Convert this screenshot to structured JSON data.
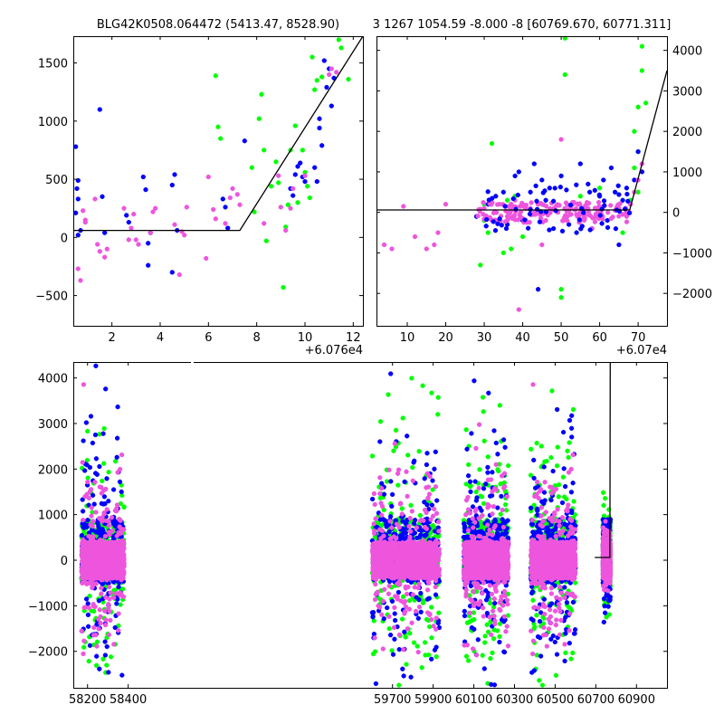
{
  "chart_data": [
    {
      "id": "top-left",
      "type": "scatter",
      "title": "BLG42K0508.064472 (5413.47, 8528.90)",
      "x_offset_label": "+6.076e4",
      "xlim": [
        0.4,
        12.4
      ],
      "ylim": [
        -760,
        1730
      ],
      "xticks": [
        2,
        4,
        6,
        8,
        10,
        12
      ],
      "xtick_labels": [
        "2",
        "4",
        "6",
        "8",
        "10",
        "12"
      ],
      "yticks": [
        -500,
        0,
        500,
        1000,
        1500
      ],
      "ytick_labels": [
        "−500",
        "0",
        "500",
        "1000",
        "1500"
      ],
      "y_axis_side": "left",
      "model_line": [
        [
          0.4,
          60
        ],
        [
          7.3,
          60
        ],
        [
          12.4,
          1730
        ]
      ],
      "series": [
        {
          "name": "green",
          "color": "#00ff00",
          "points": [
            [
              6.3,
              1390
            ],
            [
              6.4,
              950
            ],
            [
              6.5,
              850
            ],
            [
              7.8,
              600
            ],
            [
              7.9,
              220
            ],
            [
              8.1,
              1020
            ],
            [
              8.2,
              1230
            ],
            [
              8.3,
              750
            ],
            [
              8.4,
              -30
            ],
            [
              8.6,
              440
            ],
            [
              8.9,
              470
            ],
            [
              9.1,
              -430
            ],
            [
              9.2,
              90
            ],
            [
              9.3,
              280
            ],
            [
              9.4,
              750
            ],
            [
              9.6,
              960
            ],
            [
              9.9,
              750
            ],
            [
              10.0,
              560
            ],
            [
              10.1,
              440
            ],
            [
              10.2,
              340
            ],
            [
              10.3,
              1550
            ],
            [
              10.4,
              1270
            ],
            [
              10.5,
              1350
            ],
            [
              10.7,
              1380
            ],
            [
              11.0,
              1750
            ],
            [
              11.4,
              1700
            ],
            [
              11.5,
              1630
            ],
            [
              11.8,
              1360
            ],
            [
              8.8,
              650
            ],
            [
              9.7,
              300
            ]
          ]
        },
        {
          "name": "blue",
          "color": "#0000ff",
          "points": [
            [
              0.5,
              780
            ],
            [
              0.6,
              490
            ],
            [
              0.55,
              420
            ],
            [
              0.6,
              330
            ],
            [
              0.5,
              210
            ],
            [
              0.7,
              60
            ],
            [
              0.6,
              20
            ],
            [
              1.5,
              1100
            ],
            [
              1.6,
              350
            ],
            [
              1.7,
              40
            ],
            [
              2.6,
              190
            ],
            [
              2.7,
              130
            ],
            [
              3.3,
              520
            ],
            [
              3.4,
              410
            ],
            [
              3.6,
              40
            ],
            [
              3.5,
              -50
            ],
            [
              4.5,
              450
            ],
            [
              4.6,
              540
            ],
            [
              4.5,
              -300
            ],
            [
              4.7,
              60
            ],
            [
              3.5,
              -240
            ],
            [
              6.6,
              330
            ],
            [
              6.7,
              260
            ],
            [
              6.8,
              80
            ],
            [
              7.5,
              830
            ],
            [
              9.4,
              420
            ],
            [
              9.5,
              360
            ],
            [
              9.7,
              610
            ],
            [
              9.8,
              640
            ],
            [
              9.9,
              520
            ],
            [
              10.0,
              480
            ],
            [
              10.5,
              480
            ],
            [
              10.7,
              790
            ],
            [
              10.8,
              1520
            ],
            [
              11.0,
              1450
            ],
            [
              11.1,
              1130
            ],
            [
              11.2,
              1370
            ],
            [
              10.6,
              940
            ],
            [
              10.9,
              1290
            ],
            [
              9.6,
              540
            ],
            [
              10.4,
              600
            ],
            [
              10.6,
              1020
            ]
          ]
        },
        {
          "name": "magenta",
          "color": "#ee55dd",
          "points": [
            [
              0.6,
              -270
            ],
            [
              0.7,
              -370
            ],
            [
              0.8,
              230
            ],
            [
              0.9,
              150
            ],
            [
              0.9,
              130
            ],
            [
              1.3,
              330
            ],
            [
              1.4,
              -60
            ],
            [
              1.5,
              -120
            ],
            [
              1.7,
              -170
            ],
            [
              1.8,
              -100
            ],
            [
              2.5,
              250
            ],
            [
              2.7,
              -20
            ],
            [
              2.8,
              80
            ],
            [
              2.9,
              200
            ],
            [
              3.0,
              -20
            ],
            [
              3.1,
              -60
            ],
            [
              3.6,
              40
            ],
            [
              3.7,
              220
            ],
            [
              3.8,
              250
            ],
            [
              4.6,
              110
            ],
            [
              4.8,
              -320
            ],
            [
              4.9,
              50
            ],
            [
              5.0,
              20
            ],
            [
              5.1,
              260
            ],
            [
              6.0,
              520
            ],
            [
              6.2,
              240
            ],
            [
              6.3,
              160
            ],
            [
              6.9,
              340
            ],
            [
              7.0,
              420
            ],
            [
              7.2,
              370
            ],
            [
              7.3,
              280
            ],
            [
              8.9,
              530
            ],
            [
              9.0,
              260
            ],
            [
              9.2,
              60
            ],
            [
              9.4,
              250
            ],
            [
              9.5,
              420
            ],
            [
              10.0,
              530
            ],
            [
              11.0,
              1400
            ],
            [
              11.1,
              1450
            ],
            [
              11.3,
              1420
            ],
            [
              5.9,
              -180
            ],
            [
              6.7,
              120
            ],
            [
              8.3,
              120
            ]
          ]
        }
      ]
    },
    {
      "id": "top-right",
      "type": "scatter",
      "title": "3 1267 1054.59 -8.000 -8 [60769.670, 60771.311]",
      "x_offset_label": "+6.07e4",
      "xlim": [
        2,
        77.5
      ],
      "ylim": [
        -2800,
        4350
      ],
      "xticks": [
        10,
        20,
        30,
        40,
        50,
        60,
        70
      ],
      "xtick_labels": [
        "10",
        "20",
        "30",
        "40",
        "50",
        "60",
        "70"
      ],
      "yticks": [
        -2000,
        -1000,
        0,
        1000,
        2000,
        3000,
        4000
      ],
      "ytick_labels": [
        "−2000",
        "−1000",
        "0",
        "1000",
        "2000",
        "3000",
        "4000"
      ],
      "y_axis_side": "right",
      "model_line": [
        [
          2,
          60
        ],
        [
          67.8,
          60
        ],
        [
          77.5,
          3500
        ]
      ],
      "series": [
        {
          "name": "green",
          "color": "#00ff00",
          "points": [
            [
              29,
              -1300
            ],
            [
              30,
              200
            ],
            [
              31,
              -500
            ],
            [
              32,
              1700
            ],
            [
              34,
              -200
            ],
            [
              36,
              300
            ],
            [
              37,
              -900
            ],
            [
              38,
              400
            ],
            [
              45,
              200
            ],
            [
              50,
              -1900
            ],
            [
              50,
              -2100
            ],
            [
              51,
              4300
            ],
            [
              51,
              3400
            ],
            [
              55,
              400
            ],
            [
              60,
              600
            ],
            [
              65,
              200
            ],
            [
              66,
              -500
            ],
            [
              68,
              300
            ],
            [
              69,
              1100
            ],
            [
              70,
              2600
            ],
            [
              70,
              1500
            ],
            [
              71,
              3500
            ],
            [
              71,
              4100
            ],
            [
              72,
              2700
            ],
            [
              69,
              2000
            ],
            [
              70,
              500
            ],
            [
              40,
              -600
            ],
            [
              35,
              -1000
            ],
            [
              30,
              -200
            ]
          ]
        },
        {
          "name": "blue",
          "color": "#0000ff",
          "points": [
            [
              28,
              -100
            ],
            [
              31,
              200
            ],
            [
              33,
              400
            ],
            [
              36,
              -300
            ],
            [
              38,
              900
            ],
            [
              39,
              1000
            ],
            [
              40,
              -200
            ],
            [
              42,
              500
            ],
            [
              44,
              -1900
            ],
            [
              45,
              800
            ],
            [
              47,
              600
            ],
            [
              50,
              900
            ],
            [
              52,
              -300
            ],
            [
              53,
              200
            ],
            [
              55,
              1200
            ],
            [
              57,
              700
            ],
            [
              58,
              -400
            ],
            [
              60,
              400
            ],
            [
              63,
              1100
            ],
            [
              65,
              -800
            ],
            [
              66,
              300
            ],
            [
              67,
              600
            ],
            [
              68,
              200
            ],
            [
              69,
              800
            ],
            [
              70,
              1500
            ],
            [
              71,
              1000
            ],
            [
              43,
              1200
            ],
            [
              48,
              -400
            ],
            [
              54,
              -500
            ],
            [
              62,
              -200
            ],
            [
              35,
              500
            ],
            [
              46,
              300
            ],
            [
              56,
              -100
            ],
            [
              61,
              800
            ],
            [
              64,
              500
            ]
          ]
        },
        {
          "name": "magenta",
          "color": "#ee55dd",
          "points": [
            [
              4,
              -800
            ],
            [
              6,
              -900
            ],
            [
              9,
              150
            ],
            [
              12,
              -600
            ],
            [
              15,
              -900
            ],
            [
              17,
              -800
            ],
            [
              18,
              -500
            ],
            [
              20,
              200
            ],
            [
              30,
              100
            ],
            [
              32,
              -200
            ],
            [
              34,
              200
            ],
            [
              36,
              -100
            ],
            [
              38,
              300
            ],
            [
              40,
              -150
            ],
            [
              42,
              100
            ],
            [
              44,
              200
            ],
            [
              46,
              -200
            ],
            [
              48,
              100
            ],
            [
              50,
              1800
            ],
            [
              51,
              -100
            ],
            [
              53,
              250
            ],
            [
              55,
              -200
            ],
            [
              57,
              100
            ],
            [
              59,
              -100
            ],
            [
              61,
              150
            ],
            [
              63,
              -150
            ],
            [
              65,
              100
            ],
            [
              67,
              -100
            ],
            [
              68,
              200
            ],
            [
              69,
              500
            ],
            [
              70,
              800
            ],
            [
              71,
              1200
            ],
            [
              39,
              -2400
            ],
            [
              45,
              -800
            ],
            [
              58,
              -400
            ],
            [
              33,
              0
            ],
            [
              37,
              50
            ],
            [
              43,
              -50
            ],
            [
              47,
              0
            ],
            [
              52,
              50
            ],
            [
              56,
              -50
            ],
            [
              60,
              0
            ],
            [
              64,
              50
            ],
            [
              66,
              -50
            ]
          ]
        }
      ]
    },
    {
      "id": "bottom",
      "type": "scatter",
      "title": "",
      "broken_x_axis": true,
      "xlim": [
        58130,
        61050
      ],
      "ylim": [
        -2800,
        4350
      ],
      "xticks": [
        58200,
        58400,
        59700,
        59900,
        60100,
        60300,
        60500,
        60700,
        60900
      ],
      "xtick_labels": [
        "58200",
        "58400",
        "59700",
        "59900",
        "60100",
        "60300",
        "60500",
        "60700",
        "60900"
      ],
      "yticks": [
        -2000,
        -1000,
        0,
        1000,
        2000,
        3000,
        4000
      ],
      "ytick_labels": [
        "−2000",
        "−1000",
        "0",
        "1000",
        "2000",
        "3000",
        "4000"
      ],
      "y_axis_side": "left",
      "model_line": [
        [
          60695,
          60
        ],
        [
          60769,
          60
        ],
        [
          60771,
          4350
        ]
      ],
      "clusters": [
        {
          "x_range": [
            58170,
            58380
          ],
          "core": 300,
          "spread": 1500,
          "upper": 4350,
          "lower": -2600
        },
        {
          "x_range": [
            59600,
            59930
          ],
          "core": 300,
          "spread": 1500,
          "upper": 4350,
          "lower": -2800
        },
        {
          "x_range": [
            60050,
            60270
          ],
          "core": 300,
          "spread": 1500,
          "upper": 4350,
          "lower": -2800
        },
        {
          "x_range": [
            60380,
            60600
          ],
          "core": 300,
          "spread": 1500,
          "upper": 4350,
          "lower": -2800
        },
        {
          "x_range": [
            60735,
            60772
          ],
          "core": 300,
          "spread": 500,
          "upper": 2300,
          "lower": -2400
        }
      ],
      "series": [
        {
          "name": "green",
          "color": "#00ff00"
        },
        {
          "name": "blue",
          "color": "#0000ff"
        },
        {
          "name": "magenta",
          "color": "#ee55dd"
        }
      ]
    }
  ]
}
